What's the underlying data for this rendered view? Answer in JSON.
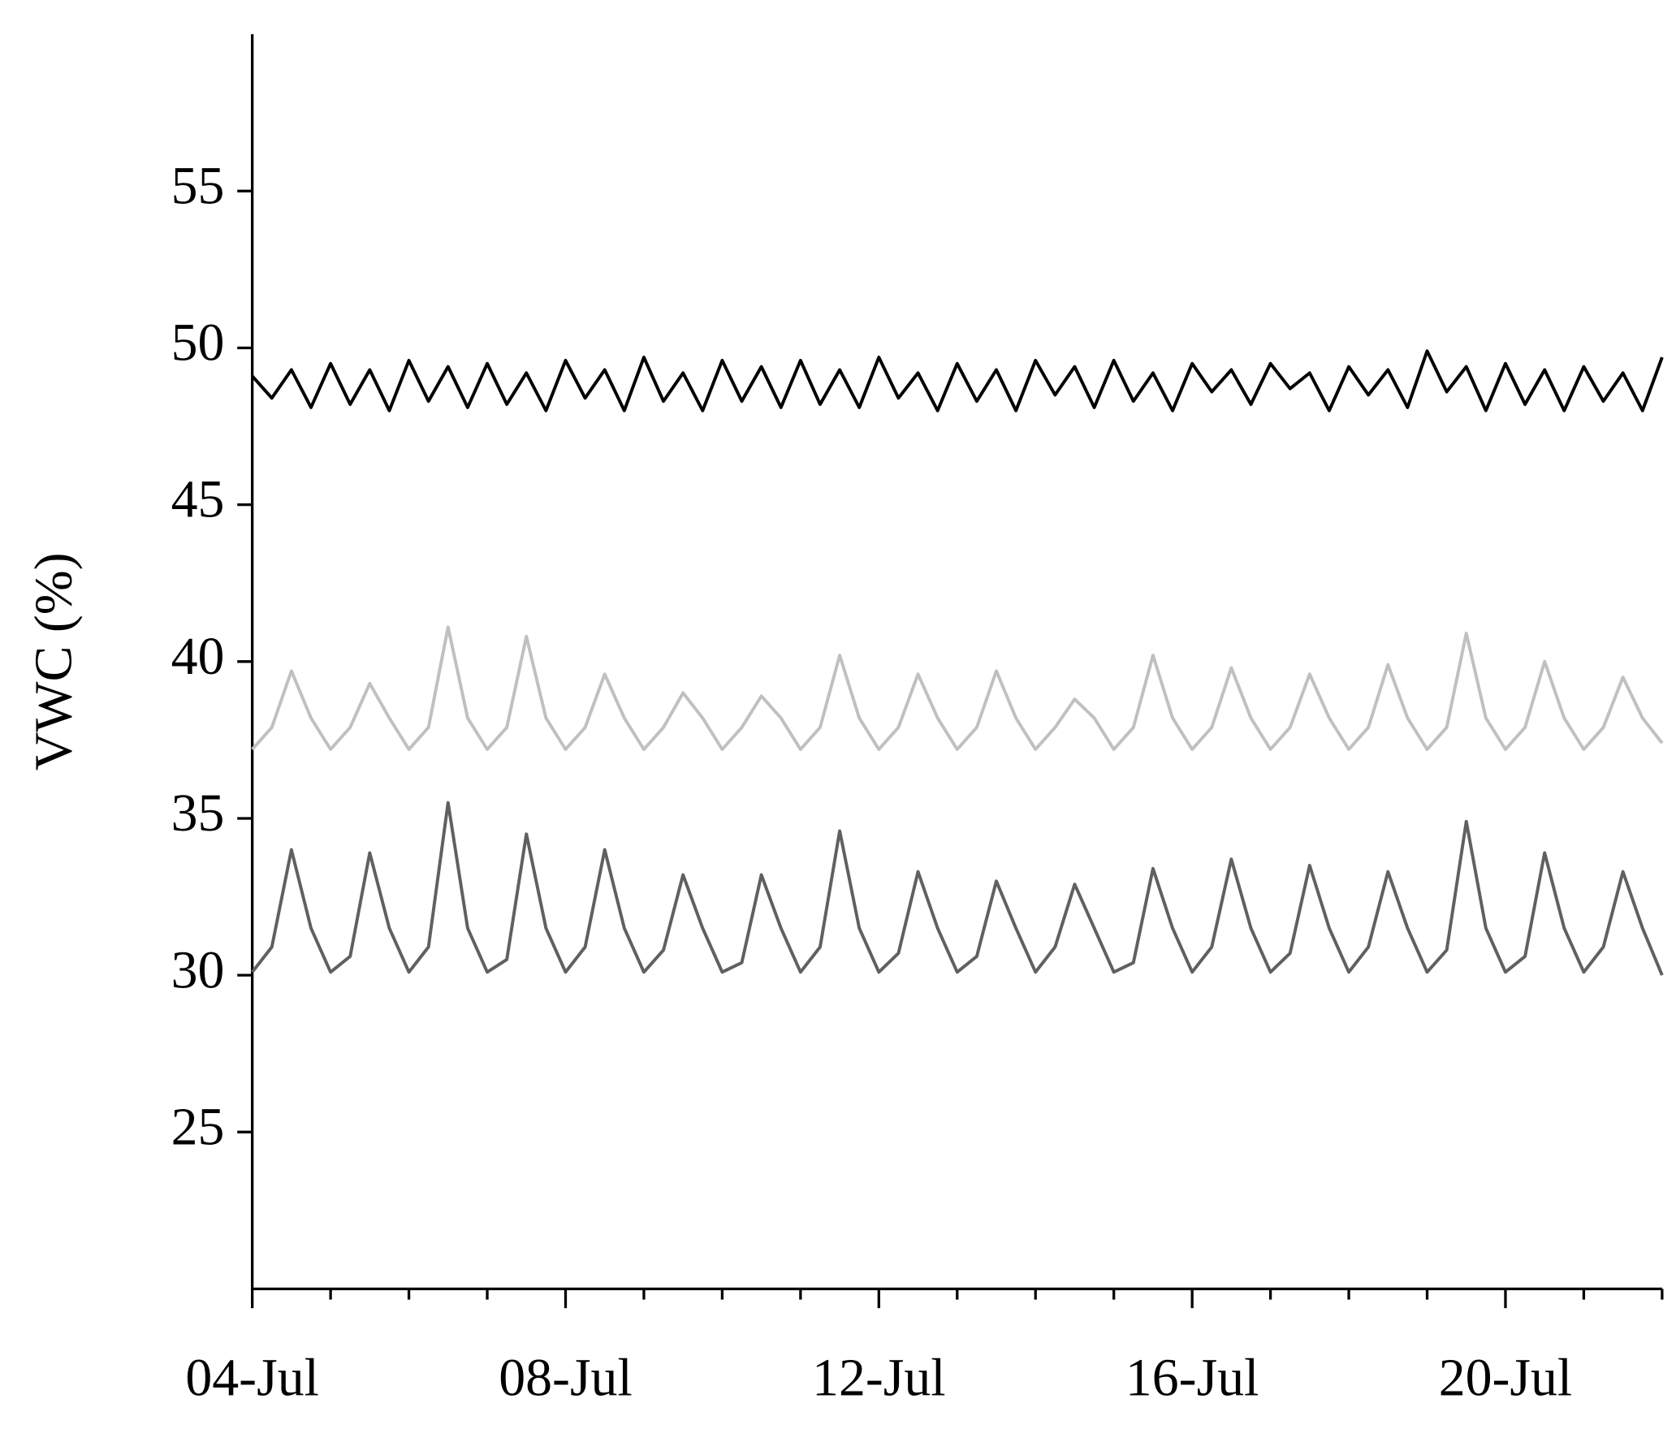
{
  "chart_data": {
    "type": "line",
    "ylabel": "VWC (%)",
    "xlim": [
      0,
      18
    ],
    "ylim": [
      20,
      60
    ],
    "yticks": [
      25,
      30,
      35,
      40,
      45,
      50,
      55
    ],
    "xticks": [
      {
        "value": 0,
        "label": "04-Jul"
      },
      {
        "value": 4,
        "label": "08-Jul"
      },
      {
        "value": 8,
        "label": "12-Jul"
      },
      {
        "value": 12,
        "label": "16-Jul"
      },
      {
        "value": 16,
        "label": "20-Jul"
      }
    ],
    "xminor_ticks": [
      1,
      2,
      3,
      5,
      6,
      7,
      9,
      10,
      11,
      13,
      14,
      15,
      17,
      18
    ],
    "grid": false,
    "x": [
      0,
      0.25,
      0.5,
      0.75,
      1,
      1.25,
      1.5,
      1.75,
      2,
      2.25,
      2.5,
      2.75,
      3,
      3.25,
      3.5,
      3.75,
      4,
      4.25,
      4.5,
      4.75,
      5,
      5.25,
      5.5,
      5.75,
      6,
      6.25,
      6.5,
      6.75,
      7,
      7.25,
      7.5,
      7.75,
      8,
      8.25,
      8.5,
      8.75,
      9,
      9.25,
      9.5,
      9.75,
      10,
      10.25,
      10.5,
      10.75,
      11,
      11.25,
      11.5,
      11.75,
      12,
      12.25,
      12.5,
      12.75,
      13,
      13.25,
      13.5,
      13.75,
      14,
      14.25,
      14.5,
      14.75,
      15,
      15.25,
      15.5,
      15.75,
      16,
      16.25,
      16.5,
      16.75,
      17,
      17.25,
      17.5,
      17.75,
      18
    ],
    "series": [
      {
        "color": "#000000",
        "values": [
          49.1,
          48.4,
          49.3,
          48.1,
          49.5,
          48.2,
          49.3,
          48.0,
          49.6,
          48.3,
          49.4,
          48.1,
          49.5,
          48.2,
          49.2,
          48.0,
          49.6,
          48.4,
          49.3,
          48.0,
          49.7,
          48.3,
          49.2,
          48.0,
          49.6,
          48.3,
          49.4,
          48.1,
          49.6,
          48.2,
          49.3,
          48.1,
          49.7,
          48.4,
          49.2,
          48.0,
          49.5,
          48.3,
          49.3,
          48.0,
          49.6,
          48.5,
          49.4,
          48.1,
          49.6,
          48.3,
          49.2,
          48.0,
          49.5,
          48.6,
          49.3,
          48.2,
          49.5,
          48.7,
          49.2,
          48.0,
          49.4,
          48.5,
          49.3,
          48.1,
          49.9,
          48.6,
          49.4,
          48.0,
          49.5,
          48.2,
          49.3,
          48.0,
          49.4,
          48.3,
          49.2,
          48.0,
          49.7
        ]
      },
      {
        "color": "#c0c0c0",
        "values": [
          37.2,
          37.9,
          39.7,
          38.2,
          37.2,
          37.9,
          39.3,
          38.2,
          37.2,
          37.9,
          41.1,
          38.2,
          37.2,
          37.9,
          40.8,
          38.2,
          37.2,
          37.9,
          39.6,
          38.2,
          37.2,
          37.9,
          39.0,
          38.2,
          37.2,
          37.9,
          38.9,
          38.2,
          37.2,
          37.9,
          40.2,
          38.2,
          37.2,
          37.9,
          39.6,
          38.2,
          37.2,
          37.9,
          39.7,
          38.2,
          37.2,
          37.9,
          38.8,
          38.2,
          37.2,
          37.9,
          40.2,
          38.2,
          37.2,
          37.9,
          39.8,
          38.2,
          37.2,
          37.9,
          39.6,
          38.2,
          37.2,
          37.9,
          39.9,
          38.2,
          37.2,
          37.9,
          40.9,
          38.2,
          37.2,
          37.9,
          40.0,
          38.2,
          37.2,
          37.9,
          39.5,
          38.2,
          37.4
        ]
      },
      {
        "color": "#606060",
        "values": [
          30.1,
          30.9,
          34.0,
          31.5,
          30.1,
          30.6,
          33.9,
          31.5,
          30.1,
          30.9,
          35.5,
          31.5,
          30.1,
          30.5,
          34.5,
          31.5,
          30.1,
          30.9,
          34.0,
          31.5,
          30.1,
          30.8,
          33.2,
          31.5,
          30.1,
          30.4,
          33.2,
          31.5,
          30.1,
          30.9,
          34.6,
          31.5,
          30.1,
          30.7,
          33.3,
          31.5,
          30.1,
          30.6,
          33.0,
          31.5,
          30.1,
          30.9,
          32.9,
          31.5,
          30.1,
          30.4,
          33.4,
          31.5,
          30.1,
          30.9,
          33.7,
          31.5,
          30.1,
          30.7,
          33.5,
          31.5,
          30.1,
          30.9,
          33.3,
          31.5,
          30.1,
          30.8,
          34.9,
          31.5,
          30.1,
          30.6,
          33.9,
          31.5,
          30.1,
          30.9,
          33.3,
          31.5,
          30.0
        ]
      }
    ]
  }
}
